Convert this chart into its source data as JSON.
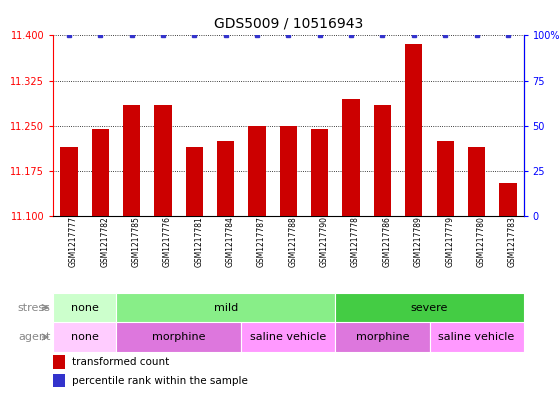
{
  "title": "GDS5009 / 10516943",
  "samples": [
    "GSM1217777",
    "GSM1217782",
    "GSM1217785",
    "GSM1217776",
    "GSM1217781",
    "GSM1217784",
    "GSM1217787",
    "GSM1217788",
    "GSM1217790",
    "GSM1217778",
    "GSM1217786",
    "GSM1217789",
    "GSM1217779",
    "GSM1217780",
    "GSM1217783"
  ],
  "transformed_count": [
    11.215,
    11.245,
    11.285,
    11.285,
    11.215,
    11.225,
    11.25,
    11.25,
    11.245,
    11.295,
    11.285,
    11.385,
    11.225,
    11.215,
    11.155
  ],
  "percentile_rank": [
    100,
    100,
    100,
    100,
    100,
    100,
    100,
    100,
    100,
    100,
    100,
    100,
    100,
    100,
    100
  ],
  "ylim_left": [
    11.1,
    11.4
  ],
  "ylim_right": [
    0,
    100
  ],
  "yticks_left": [
    11.1,
    11.175,
    11.25,
    11.325,
    11.4
  ],
  "yticks_right": [
    0,
    25,
    50,
    75,
    100
  ],
  "bar_color": "#cc0000",
  "percentile_color": "#3333cc",
  "stress_groups": [
    {
      "label": "none",
      "start": 0,
      "end": 2,
      "color": "#ccffcc"
    },
    {
      "label": "mild",
      "start": 2,
      "end": 9,
      "color": "#88ee88"
    },
    {
      "label": "severe",
      "start": 9,
      "end": 15,
      "color": "#44cc44"
    }
  ],
  "agent_groups": [
    {
      "label": "none",
      "start": 0,
      "end": 2,
      "color": "#ffccff"
    },
    {
      "label": "morphine",
      "start": 2,
      "end": 6,
      "color": "#dd77dd"
    },
    {
      "label": "saline vehicle",
      "start": 6,
      "end": 9,
      "color": "#ff99ff"
    },
    {
      "label": "morphine",
      "start": 9,
      "end": 12,
      "color": "#dd77dd"
    },
    {
      "label": "saline vehicle",
      "start": 12,
      "end": 15,
      "color": "#ff99ff"
    }
  ],
  "bar_width": 0.55,
  "title_fontsize": 10,
  "tick_fontsize": 7,
  "label_fontsize": 8,
  "group_fontsize": 8,
  "legend_fontsize": 7.5
}
